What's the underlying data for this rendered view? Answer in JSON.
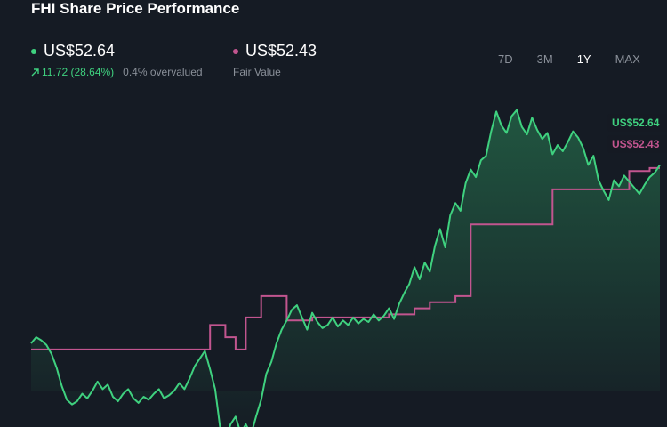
{
  "title": "FHI Share Price Performance",
  "price": {
    "value": "US$52.64",
    "change": "11.72 (28.64%)",
    "valuation": "0.4% overvalued",
    "color": "#3fd17f"
  },
  "fair_value": {
    "value": "US$52.43",
    "label": "Fair Value",
    "color": "#c2558f"
  },
  "ranges": [
    "7D",
    "3M",
    "1Y",
    "MAX"
  ],
  "active_range": "1Y",
  "chart_data": {
    "type": "line",
    "title": "FHI Share Price Performance",
    "xlabel": "",
    "ylabel": "",
    "grid": false,
    "ylim": [
      36,
      57
    ],
    "series": [
      {
        "name": "Share Price",
        "color": "#3fd17f",
        "end_label": "US$52.64",
        "values": [
          40.9,
          41.3,
          41.1,
          40.8,
          40.2,
          39.3,
          38.1,
          37.2,
          36.9,
          37.1,
          37.6,
          37.3,
          37.8,
          38.4,
          37.9,
          38.2,
          37.4,
          37.1,
          37.6,
          37.9,
          37.3,
          37.0,
          37.4,
          37.2,
          37.6,
          37.9,
          37.3,
          37.5,
          37.8,
          38.3,
          37.9,
          38.6,
          39.4,
          39.9,
          40.4,
          39.2,
          37.9,
          35.3,
          34.5,
          35.6,
          36.1,
          35.0,
          35.6,
          34.9,
          36.1,
          37.2,
          38.9,
          39.7,
          40.9,
          41.8,
          42.4,
          43.1,
          43.4,
          42.6,
          41.8,
          42.9,
          42.3,
          41.9,
          42.1,
          42.6,
          42.0,
          42.4,
          42.1,
          42.6,
          42.2,
          42.5,
          42.3,
          42.8,
          42.4,
          42.7,
          43.2,
          42.5,
          43.5,
          44.2,
          44.8,
          45.9,
          45.1,
          46.2,
          45.6,
          47.3,
          48.4,
          47.2,
          49.3,
          50.1,
          49.6,
          51.4,
          52.3,
          51.8,
          52.9,
          53.2,
          54.8,
          56.1,
          55.2,
          54.7,
          55.8,
          56.2,
          55.1,
          54.6,
          55.7,
          54.9,
          54.3,
          54.7,
          53.3,
          53.9,
          53.5,
          54.1,
          54.8,
          54.4,
          53.7,
          52.6,
          53.2,
          51.6,
          50.9,
          50.3,
          51.6,
          51.2,
          51.9,
          51.5,
          51.1,
          50.7,
          51.3,
          51.8,
          52.1,
          52.6
        ]
      },
      {
        "name": "Fair Value",
        "color": "#c2558f",
        "end_label": "US$52.43",
        "step": true,
        "values": [
          40.5,
          40.5,
          40.5,
          40.5,
          40.5,
          40.5,
          40.5,
          40.5,
          40.5,
          40.5,
          40.5,
          40.5,
          40.5,
          40.5,
          40.5,
          40.5,
          40.5,
          40.5,
          40.5,
          40.5,
          40.5,
          40.5,
          40.5,
          40.5,
          40.5,
          40.5,
          40.5,
          40.5,
          40.5,
          40.5,
          40.5,
          40.5,
          40.5,
          40.5,
          40.5,
          42.1,
          42.1,
          42.1,
          41.3,
          41.3,
          40.5,
          40.5,
          42.6,
          42.6,
          42.6,
          44.0,
          44.0,
          44.0,
          44.0,
          44.0,
          42.4,
          42.4,
          42.4,
          42.4,
          42.4,
          42.6,
          42.6,
          42.6,
          42.6,
          42.6,
          42.6,
          42.6,
          42.6,
          42.6,
          42.6,
          42.6,
          42.6,
          42.6,
          42.6,
          42.6,
          42.8,
          42.8,
          42.8,
          42.8,
          42.8,
          43.2,
          43.2,
          43.2,
          43.6,
          43.6,
          43.6,
          43.6,
          43.6,
          44.0,
          44.0,
          44.0,
          48.7,
          48.7,
          48.7,
          48.7,
          48.7,
          48.7,
          48.7,
          48.7,
          48.7,
          48.7,
          48.7,
          48.7,
          48.7,
          48.7,
          48.7,
          48.7,
          51.0,
          51.0,
          51.0,
          51.0,
          51.0,
          51.0,
          51.0,
          51.0,
          51.0,
          51.0,
          51.0,
          51.0,
          51.0,
          51.0,
          51.0,
          52.2,
          52.2,
          52.2,
          52.2,
          52.4,
          52.4,
          52.4
        ]
      }
    ]
  }
}
